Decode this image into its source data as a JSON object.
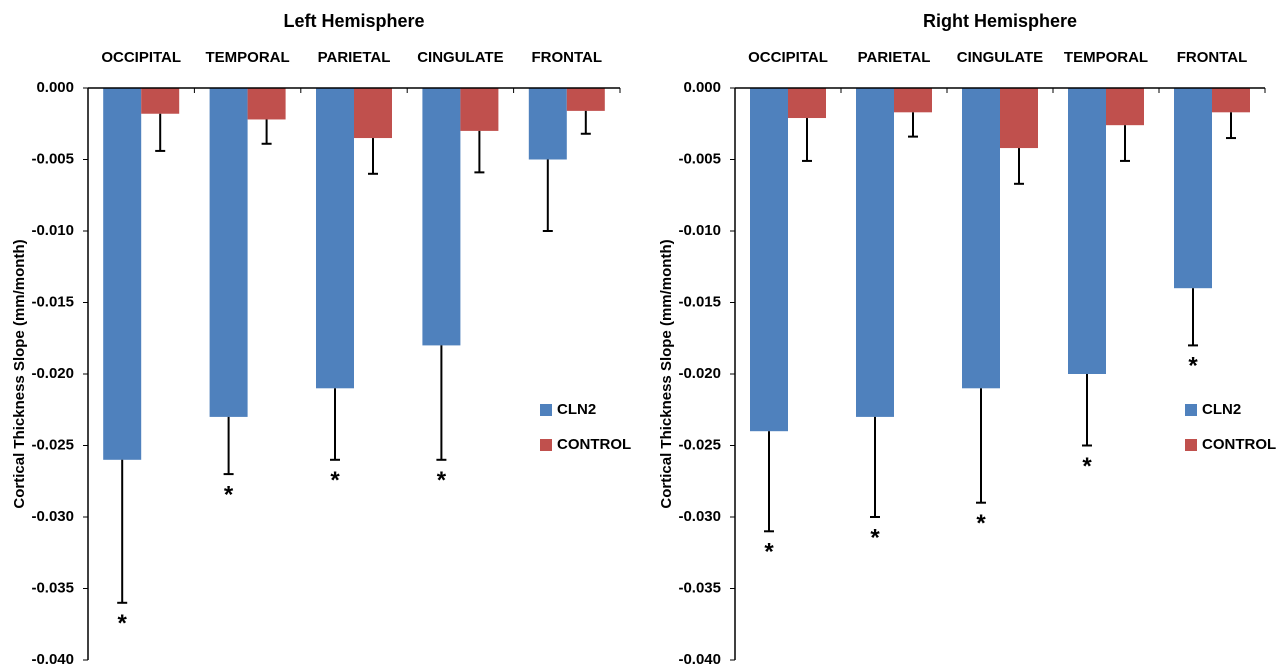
{
  "chart_data": [
    {
      "type": "bar",
      "title": "Left Hemisphere",
      "ylabel": "Cortical Thickness Slope (mm/month)",
      "categories": [
        "OCCIPITAL",
        "TEMPORAL",
        "PARIETAL",
        "CINGULATE",
        "FRONTAL"
      ],
      "series": [
        {
          "name": "CLN2",
          "color": "#4f81bd",
          "values": [
            -0.026,
            -0.023,
            -0.021,
            -0.018,
            -0.005
          ],
          "errors": [
            0.01,
            0.004,
            0.005,
            0.008,
            0.005
          ],
          "significance": [
            "*",
            "*",
            "*",
            "*",
            null
          ]
        },
        {
          "name": "CONTROL",
          "color": "#c0504d",
          "values": [
            -0.0018,
            -0.0022,
            -0.0035,
            -0.003,
            -0.0016
          ],
          "errors": [
            0.0026,
            0.0017,
            0.0025,
            0.0029,
            0.0016
          ]
        }
      ],
      "ylim": [
        -0.04,
        0
      ],
      "yticks": [
        {
          "value": 0,
          "label": "0.000"
        },
        {
          "value": -0.005,
          "label": "-0.005"
        },
        {
          "value": -0.01,
          "label": "-0.010"
        },
        {
          "value": -0.015,
          "label": "-0.015"
        },
        {
          "value": -0.02,
          "label": "-0.020"
        },
        {
          "value": -0.025,
          "label": "-0.025"
        },
        {
          "value": -0.03,
          "label": "-0.030"
        },
        {
          "value": -0.035,
          "label": "-0.035"
        },
        {
          "value": -0.04,
          "label": "-0.040"
        }
      ],
      "legend": "right"
    },
    {
      "type": "bar",
      "title": "Right Hemisphere",
      "ylabel": "Cortical Thickness Slope (mm/month)",
      "categories": [
        "OCCIPITAL",
        "PARIETAL",
        "CINGULATE",
        "TEMPORAL",
        "FRONTAL"
      ],
      "series": [
        {
          "name": "CLN2",
          "color": "#4f81bd",
          "values": [
            -0.024,
            -0.023,
            -0.021,
            -0.02,
            -0.014
          ],
          "errors": [
            0.007,
            0.007,
            0.008,
            0.005,
            0.004
          ],
          "significance": [
            "*",
            "*",
            "*",
            "*",
            "*"
          ]
        },
        {
          "name": "CONTROL",
          "color": "#c0504d",
          "values": [
            -0.0021,
            -0.0017,
            -0.0042,
            -0.0026,
            -0.0017
          ],
          "errors": [
            0.003,
            0.0017,
            0.0025,
            0.0025,
            0.0018
          ]
        }
      ],
      "ylim": [
        -0.04,
        0
      ],
      "yticks": [
        {
          "value": 0,
          "label": "0.000"
        },
        {
          "value": -0.005,
          "label": "-0.005"
        },
        {
          "value": -0.01,
          "label": "-0.010"
        },
        {
          "value": -0.015,
          "label": "-0.015"
        },
        {
          "value": -0.02,
          "label": "-0.020"
        },
        {
          "value": -0.025,
          "label": "-0.025"
        },
        {
          "value": -0.03,
          "label": "-0.030"
        },
        {
          "value": -0.035,
          "label": "-0.035"
        },
        {
          "value": -0.04,
          "label": "-0.040"
        }
      ],
      "legend": "right"
    }
  ]
}
